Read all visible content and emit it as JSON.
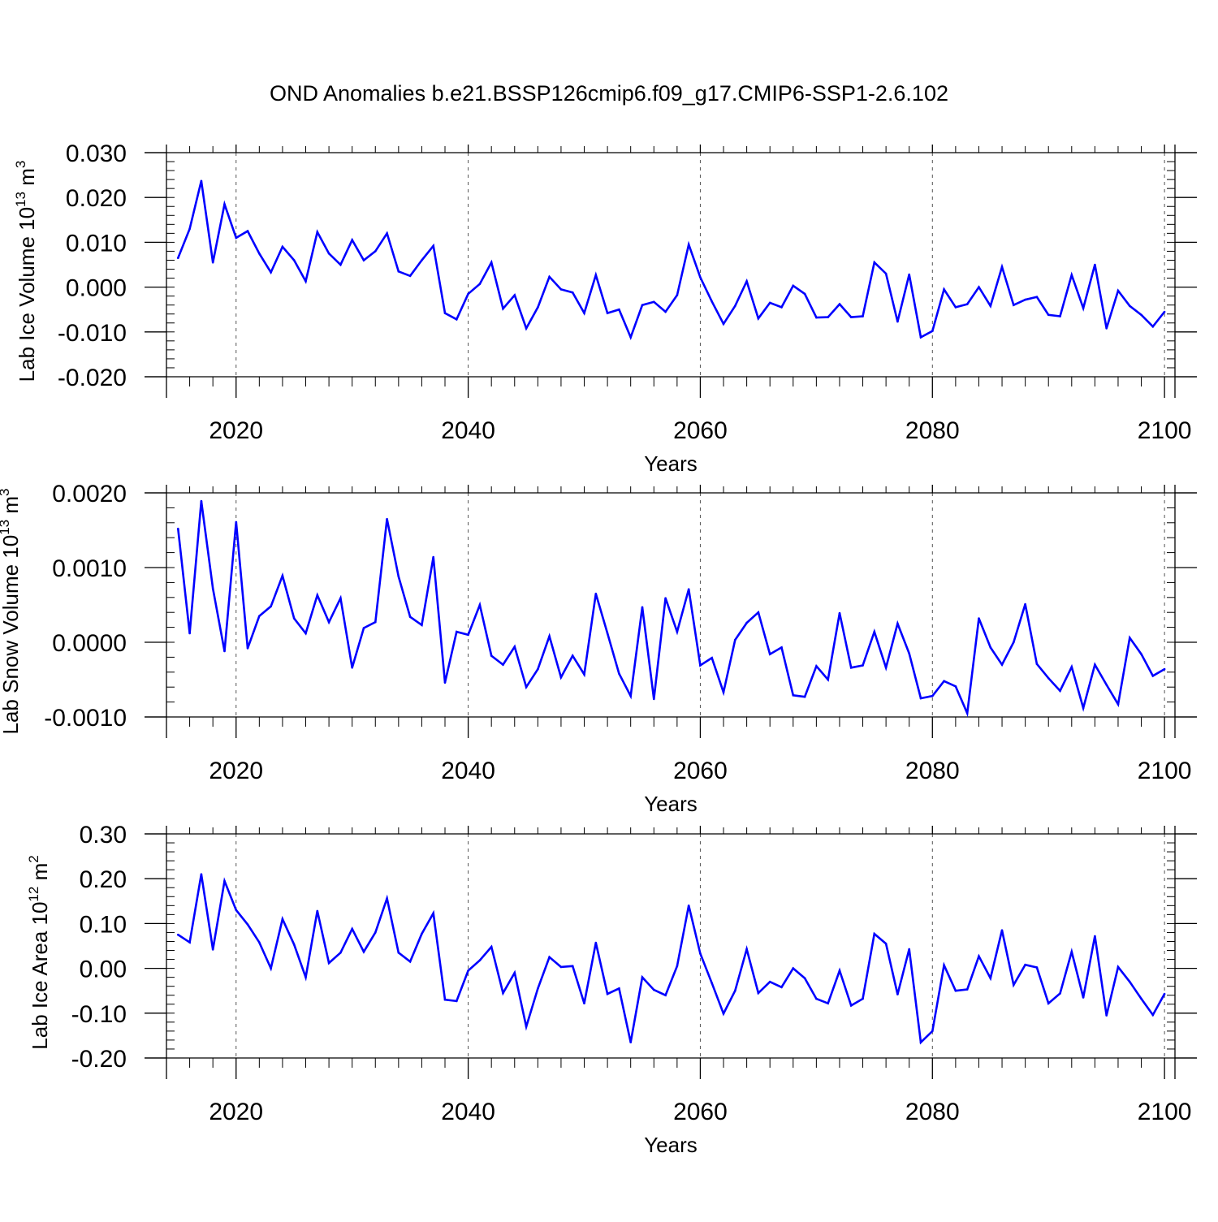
{
  "title": "OND Anomalies b.e21.BSSP126cmip6.f09_g17.CMIP6-SSP1-2.6.102",
  "chart_data": [
    {
      "type": "line",
      "title": "OND Anomalies b.e21.BSSP126cmip6.f09_g17.CMIP6-SSP1-2.6.102",
      "xlabel": "Years",
      "ylabel": {
        "text": "Lab Ice Volume 10",
        "sup1": "13",
        "unit": " m",
        "sup2": "3"
      },
      "xlim": [
        2014,
        2100.9
      ],
      "ylim": [
        -0.02,
        0.03
      ],
      "yticks": [
        0.03,
        0.02,
        0.01,
        0.0,
        -0.01,
        -0.02
      ],
      "ytick_labels": [
        "0.030",
        "0.020",
        "0.010",
        "0.000",
        "-0.010",
        "-0.020"
      ],
      "xticks": [
        2020,
        2040,
        2060,
        2080,
        2100
      ],
      "xtick_labels": [
        "2020",
        "2040",
        "2060",
        "2080",
        "2100"
      ],
      "grid": "vertical dashed at major x ticks",
      "color": "#0000ff",
      "series": [
        {
          "name": "Lab Ice Volume",
          "x_start": 2015,
          "values": [
            0.0065,
            0.013,
            0.0237,
            0.0055,
            0.0185,
            0.011,
            0.0125,
            0.0075,
            0.0033,
            0.009,
            0.006,
            0.0013,
            0.0123,
            0.0075,
            0.005,
            0.0105,
            0.006,
            0.008,
            0.012,
            0.0035,
            0.0025,
            0.006,
            0.0092,
            -0.0058,
            -0.0072,
            -0.0015,
            0.0007,
            0.0055,
            -0.0048,
            -0.0018,
            -0.0092,
            -0.0045,
            0.0023,
            -0.0005,
            -0.0012,
            -0.0058,
            0.0027,
            -0.0058,
            -0.005,
            -0.0112,
            -0.004,
            -0.0033,
            -0.0055,
            -0.0018,
            0.0095,
            0.0022,
            -0.0032,
            -0.0082,
            -0.0042,
            0.0013,
            -0.007,
            -0.0035,
            -0.0045,
            0.0003,
            -0.0015,
            -0.0068,
            -0.0067,
            -0.0038,
            -0.0067,
            -0.0065,
            0.0055,
            0.003,
            -0.0077,
            0.0028,
            -0.0112,
            -0.0098,
            -0.0005,
            -0.0045,
            -0.0038,
            0.0,
            -0.0042,
            0.0045,
            -0.004,
            -0.0028,
            -0.0022,
            -0.0062,
            -0.0065,
            0.0027,
            -0.0047,
            0.005,
            -0.0092,
            -0.0008,
            -0.0042,
            -0.0062,
            -0.0088,
            -0.0055
          ]
        }
      ]
    },
    {
      "type": "line",
      "xlabel": "Years",
      "ylabel": {
        "text": "Lab Snow Volume 10",
        "sup1": "13",
        "unit": " m",
        "sup2": "3"
      },
      "xlim": [
        2014,
        2100.9
      ],
      "ylim": [
        -0.001,
        0.002
      ],
      "yticks": [
        0.002,
        0.001,
        0.0,
        -0.001
      ],
      "ytick_labels": [
        "0.0020",
        "0.0010",
        "0.0000",
        "-0.0010"
      ],
      "xticks": [
        2020,
        2040,
        2060,
        2080,
        2100
      ],
      "xtick_labels": [
        "2020",
        "2040",
        "2060",
        "2080",
        "2100"
      ],
      "grid": "vertical dashed at major x ticks",
      "color": "#0000ff",
      "series": [
        {
          "name": "Lab Snow Volume",
          "x_start": 2015,
          "values": [
            0.00152,
            0.00012,
            0.00189,
            0.00072,
            -0.00012,
            0.00161,
            -8e-05,
            0.00035,
            0.00048,
            0.00089,
            0.00032,
            0.00012,
            0.00063,
            0.00027,
            0.00059,
            -0.00034,
            0.00019,
            0.00027,
            0.00165,
            0.00088,
            0.00034,
            0.00023,
            0.00114,
            -0.00054,
            0.00014,
            0.0001,
            0.0005,
            -0.00018,
            -0.0003,
            -6e-05,
            -0.0006,
            -0.00036,
            8e-05,
            -0.00047,
            -0.00018,
            -0.00043,
            0.00065,
            0.00012,
            -0.00042,
            -0.00072,
            0.00047,
            -0.00076,
            0.00059,
            0.00014,
            0.00071,
            -0.00031,
            -0.00021,
            -0.00067,
            3e-05,
            0.00026,
            0.0004,
            -0.00016,
            -7e-05,
            -0.00071,
            -0.00073,
            -0.00032,
            -0.0005,
            0.00039,
            -0.00034,
            -0.00031,
            0.00014,
            -0.00034,
            0.00025,
            -0.00015,
            -0.00075,
            -0.00072,
            -0.00052,
            -0.00059,
            -0.00095,
            0.00032,
            -7e-05,
            -0.0003,
            0.0,
            0.00051,
            -0.00029,
            -0.00048,
            -0.00065,
            -0.00033,
            -0.00088,
            -0.0003,
            -0.00057,
            -0.00083,
            6e-05,
            -0.00016,
            -0.00045,
            -0.00036
          ]
        }
      ]
    },
    {
      "type": "line",
      "xlabel": "Years",
      "ylabel": {
        "text": "Lab Ice Area 10",
        "sup1": "12",
        "unit": " m",
        "sup2": "2"
      },
      "xlim": [
        2014,
        2100.9
      ],
      "ylim": [
        -0.2,
        0.3
      ],
      "yticks": [
        0.3,
        0.2,
        0.1,
        0.0,
        -0.1,
        -0.2
      ],
      "ytick_labels": [
        "0.30",
        "0.20",
        "0.10",
        "0.00",
        "-0.10",
        "-0.20"
      ],
      "xticks": [
        2020,
        2040,
        2060,
        2080,
        2100
      ],
      "xtick_labels": [
        "2020",
        "2040",
        "2060",
        "2080",
        "2100"
      ],
      "grid": "vertical dashed at major x ticks",
      "color": "#0000ff",
      "series": [
        {
          "name": "Lab Ice Area",
          "x_start": 2015,
          "values": [
            0.075,
            0.058,
            0.21,
            0.042,
            0.195,
            0.13,
            0.098,
            0.058,
            0.0,
            0.11,
            0.053,
            -0.02,
            0.128,
            0.012,
            0.035,
            0.088,
            0.037,
            0.08,
            0.156,
            0.035,
            0.015,
            0.077,
            0.123,
            -0.07,
            -0.073,
            -0.005,
            0.018,
            0.048,
            -0.055,
            -0.01,
            -0.13,
            -0.045,
            0.025,
            0.003,
            0.005,
            -0.078,
            0.057,
            -0.057,
            -0.045,
            -0.165,
            -0.02,
            -0.048,
            -0.06,
            0.005,
            0.14,
            0.033,
            -0.033,
            -0.101,
            -0.05,
            0.043,
            -0.055,
            -0.03,
            -0.042,
            0.0,
            -0.022,
            -0.068,
            -0.078,
            -0.005,
            -0.083,
            -0.068,
            0.077,
            0.055,
            -0.058,
            0.043,
            -0.165,
            -0.14,
            0.007,
            -0.05,
            -0.047,
            0.027,
            -0.022,
            0.085,
            -0.037,
            0.008,
            0.002,
            -0.078,
            -0.056,
            0.037,
            -0.065,
            0.072,
            -0.105,
            0.003,
            -0.03,
            -0.068,
            -0.104,
            -0.057
          ]
        }
      ]
    }
  ]
}
